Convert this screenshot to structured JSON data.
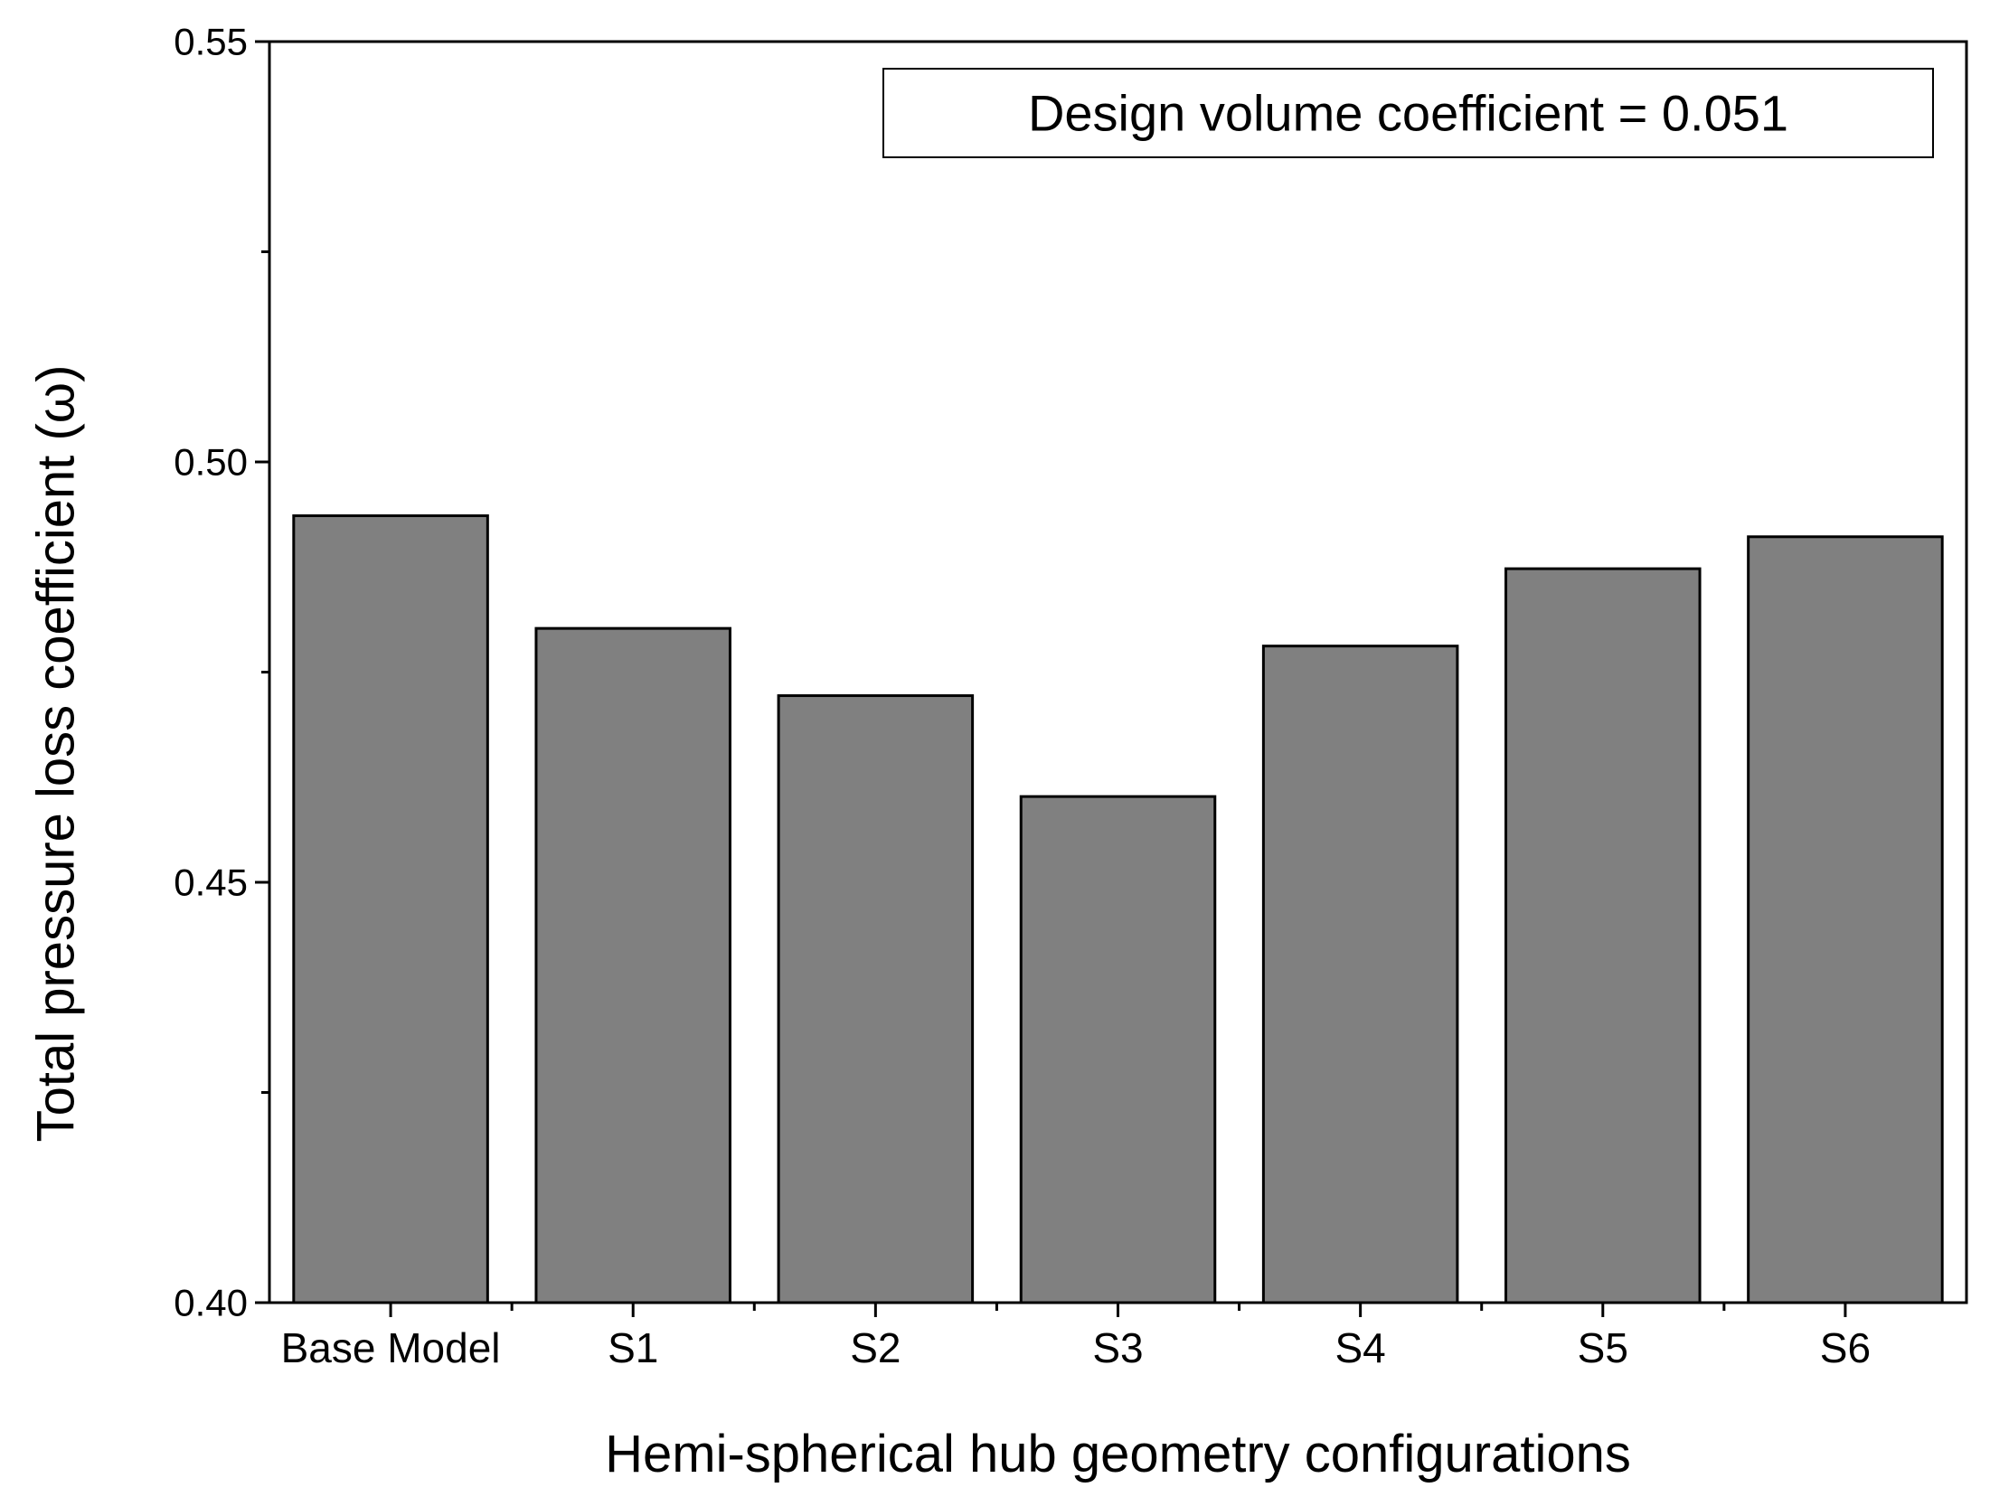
{
  "chart_data": {
    "type": "bar",
    "xlabel": "Hemi-spherical hub geometry configurations",
    "ylabel": "Total pressure loss coefficient (ω)",
    "categories": [
      "Base Model",
      "S1",
      "S2",
      "S3",
      "S4",
      "S5",
      "S6"
    ],
    "values": [
      0.4936,
      0.4802,
      0.4722,
      0.4602,
      0.4781,
      0.4873,
      0.4911
    ],
    "ylim": [
      0.4,
      0.55
    ],
    "yticks": [
      "0.40",
      "0.45",
      "0.50",
      "0.55"
    ],
    "yticks_minor": [
      0.425,
      0.475,
      0.525
    ],
    "grid": false,
    "annotation": "Design volume coefficient = 0.051",
    "annotation_position": "top-right",
    "colors": {
      "bar_fill": "#808080",
      "bar_stroke": "#000000",
      "axis": "#000000",
      "background": "#ffffff"
    }
  }
}
